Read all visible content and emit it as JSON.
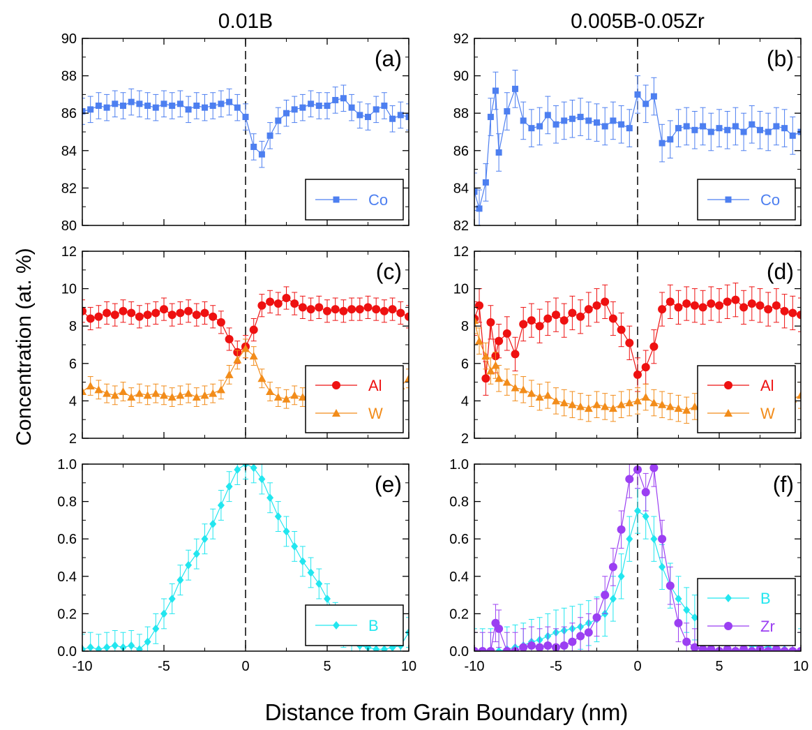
{
  "figure": {
    "column_titles": [
      "0.01B",
      "0.005B-0.05Zr"
    ],
    "ylabel": "Concentration  (at. %)",
    "xlabel": "Distance from Grain Boundary (nm)"
  },
  "colors": {
    "Co": "#4d7ff0",
    "Al": "#ee1111",
    "W": "#f28c1a",
    "B": "#22e6ef",
    "Zr": "#9b3ff2"
  },
  "chart_data": [
    {
      "type": "scatter",
      "panel": "(a)",
      "xlim": [
        -10,
        10
      ],
      "ylim": [
        80,
        90
      ],
      "yticks": [
        80,
        82,
        84,
        86,
        88,
        90
      ],
      "xticks": [
        -10,
        -5,
        0,
        5,
        10
      ],
      "legend_position": "bottom-right",
      "grid": false,
      "series": [
        {
          "name": "Co",
          "marker": "square",
          "err": 0.7,
          "x": [
            -10,
            -9.5,
            -9,
            -8.5,
            -8,
            -7.5,
            -7,
            -6.5,
            -6,
            -5.5,
            -5,
            -4.5,
            -4,
            -3.5,
            -3,
            -2.5,
            -2,
            -1.5,
            -1,
            -0.5,
            0,
            0.5,
            1,
            1.5,
            2,
            2.5,
            3,
            3.5,
            4,
            4.5,
            5,
            5.5,
            6,
            6.5,
            7,
            7.5,
            8,
            8.5,
            9,
            9.5,
            10
          ],
          "y": [
            86.1,
            86.2,
            86.4,
            86.3,
            86.5,
            86.4,
            86.6,
            86.5,
            86.4,
            86.3,
            86.5,
            86.4,
            86.5,
            86.2,
            86.4,
            86.3,
            86.4,
            86.5,
            86.6,
            86.3,
            85.8,
            84.2,
            83.8,
            84.8,
            85.6,
            86,
            86.2,
            86.3,
            86.5,
            86.4,
            86.4,
            86.7,
            86.8,
            86.3,
            85.9,
            85.8,
            86.2,
            86.4,
            85.7,
            85.9,
            85.8
          ]
        }
      ]
    },
    {
      "type": "scatter",
      "panel": "(b)",
      "xlim": [
        -10,
        10
      ],
      "ylim": [
        82,
        92
      ],
      "yticks": [
        82,
        84,
        86,
        88,
        90,
        92
      ],
      "xticks": [
        -10,
        -5,
        0,
        5,
        10
      ],
      "legend_position": "bottom-right",
      "grid": false,
      "series": [
        {
          "name": "Co",
          "marker": "square",
          "err": 1.0,
          "x": [
            -10,
            -9.7,
            -9.3,
            -9,
            -8.7,
            -8.5,
            -8,
            -7.5,
            -7,
            -6.5,
            -6,
            -5.5,
            -5,
            -4.5,
            -4,
            -3.5,
            -3,
            -2.5,
            -2,
            -1.5,
            -1,
            -0.5,
            0,
            0.5,
            1,
            1.5,
            2,
            2.5,
            3,
            3.5,
            4,
            4.5,
            5,
            5.5,
            6,
            6.5,
            7,
            7.5,
            8,
            8.5,
            9,
            9.5,
            10
          ],
          "y": [
            83.8,
            82.9,
            84.3,
            87.8,
            89.2,
            85.9,
            88.1,
            89.3,
            87.6,
            87.2,
            87.3,
            87.9,
            87.4,
            87.6,
            87.7,
            87.8,
            87.6,
            87.5,
            87.3,
            87.6,
            87.4,
            87.2,
            89,
            88.5,
            88.9,
            86.4,
            86.6,
            87.2,
            87.3,
            87.1,
            87.3,
            87,
            87.2,
            87.1,
            87.3,
            87,
            87.4,
            87.1,
            87,
            87.3,
            87.2,
            86.8,
            87
          ]
        }
      ]
    },
    {
      "type": "scatter",
      "panel": "(c)",
      "xlim": [
        -10,
        10
      ],
      "ylim": [
        2,
        12
      ],
      "yticks": [
        2,
        4,
        6,
        8,
        10,
        12
      ],
      "xticks": [
        -10,
        -5,
        0,
        5,
        10
      ],
      "legend_position": "bottom-right",
      "grid": false,
      "series": [
        {
          "name": "Al",
          "marker": "circle",
          "err": 0.6,
          "x": [
            -10,
            -9.5,
            -9,
            -8.5,
            -8,
            -7.5,
            -7,
            -6.5,
            -6,
            -5.5,
            -5,
            -4.5,
            -4,
            -3.5,
            -3,
            -2.5,
            -2,
            -1.5,
            -1,
            -0.5,
            0,
            0.5,
            1,
            1.5,
            2,
            2.5,
            3,
            3.5,
            4,
            4.5,
            5,
            5.5,
            6,
            6.5,
            7,
            7.5,
            8,
            8.5,
            9,
            9.5,
            10
          ],
          "y": [
            8.8,
            8.4,
            8.5,
            8.7,
            8.6,
            8.8,
            8.7,
            8.5,
            8.6,
            8.7,
            8.9,
            8.6,
            8.7,
            8.8,
            8.6,
            8.7,
            8.5,
            8.2,
            7.3,
            6.6,
            6.9,
            7.8,
            9.1,
            9.3,
            9.2,
            9.5,
            9.2,
            9.0,
            8.9,
            9.0,
            8.8,
            8.9,
            8.8,
            8.9,
            8.9,
            9.0,
            8.9,
            8.8,
            8.9,
            8.7,
            8.5
          ]
        },
        {
          "name": "W",
          "marker": "triangle",
          "err": 0.5,
          "x": [
            -10,
            -9.5,
            -9,
            -8.5,
            -8,
            -7.5,
            -7,
            -6.5,
            -6,
            -5.5,
            -5,
            -4.5,
            -4,
            -3.5,
            -3,
            -2.5,
            -2,
            -1.5,
            -1,
            -0.5,
            0,
            0.5,
            1,
            1.5,
            2,
            2.5,
            3,
            3.5,
            4,
            4.5,
            5,
            5.5,
            6,
            6.5,
            7,
            7.5,
            8,
            8.5,
            9,
            9.5,
            10
          ],
          "y": [
            4.5,
            4.8,
            4.6,
            4.4,
            4.3,
            4.5,
            4.2,
            4.4,
            4.3,
            4.4,
            4.3,
            4.2,
            4.3,
            4.4,
            4.2,
            4.3,
            4.4,
            4.6,
            5.4,
            6.2,
            6.8,
            6.4,
            5.2,
            4.5,
            4.2,
            4.1,
            4.3,
            4.2,
            4.3,
            4.4,
            4.2,
            4.3,
            4.4,
            4.3,
            4.5,
            4.3,
            4.4,
            4.6,
            4.5,
            4.8,
            5.2
          ]
        }
      ]
    },
    {
      "type": "scatter",
      "panel": "(d)",
      "xlim": [
        -10,
        10
      ],
      "ylim": [
        2,
        12
      ],
      "yticks": [
        2,
        4,
        6,
        8,
        10,
        12
      ],
      "xticks": [
        -10,
        -5,
        0,
        5,
        10
      ],
      "legend_position": "bottom-right",
      "grid": false,
      "series": [
        {
          "name": "Al",
          "marker": "circle",
          "err": 0.9,
          "x": [
            -10,
            -9.7,
            -9.3,
            -9,
            -8.7,
            -8.5,
            -8,
            -7.5,
            -7,
            -6.5,
            -6,
            -5.5,
            -5,
            -4.5,
            -4,
            -3.5,
            -3,
            -2.5,
            -2,
            -1.5,
            -1,
            -0.5,
            0,
            0.5,
            1,
            1.5,
            2,
            2.5,
            3,
            3.5,
            4,
            4.5,
            5,
            5.5,
            6,
            6.5,
            7,
            7.5,
            8,
            8.5,
            9,
            9.5,
            10
          ],
          "y": [
            8.4,
            9.1,
            5.2,
            8.2,
            6.4,
            7.2,
            7.6,
            6.5,
            8.1,
            8.3,
            8.0,
            8.4,
            8.6,
            8.3,
            8.7,
            8.5,
            8.9,
            9.1,
            9.3,
            8.4,
            7.8,
            7.1,
            5.4,
            5.8,
            6.9,
            8.9,
            9.3,
            9.0,
            9.2,
            9.1,
            9.0,
            9.2,
            9.1,
            9.3,
            9.4,
            9.0,
            9.2,
            9.1,
            8.9,
            9.1,
            8.8,
            8.7,
            8.6
          ]
        },
        {
          "name": "W",
          "marker": "triangle",
          "err": 0.7,
          "x": [
            -10,
            -9.7,
            -9.3,
            -9,
            -8.7,
            -8.5,
            -8,
            -7.5,
            -7,
            -6.5,
            -6,
            -5.5,
            -5,
            -4.5,
            -4,
            -3.5,
            -3,
            -2.5,
            -2,
            -1.5,
            -1,
            -0.5,
            0,
            0.5,
            1,
            1.5,
            2,
            2.5,
            3,
            3.5,
            4,
            4.5,
            5,
            5.5,
            6,
            6.5,
            7,
            7.5,
            8,
            8.5,
            9,
            9.5,
            10
          ],
          "y": [
            8.3,
            7.2,
            6.4,
            5.6,
            5.9,
            5.2,
            5.0,
            4.7,
            4.6,
            4.4,
            4.2,
            4.3,
            4.0,
            3.9,
            3.8,
            3.7,
            3.6,
            3.8,
            3.7,
            3.6,
            3.8,
            3.9,
            4.0,
            4.2,
            3.9,
            3.8,
            3.7,
            3.6,
            3.5,
            3.7,
            3.5,
            3.4,
            3.6,
            3.5,
            3.7,
            3.6,
            3.8,
            3.7,
            3.9,
            3.8,
            4.0,
            4.1,
            4.3
          ]
        }
      ]
    },
    {
      "type": "scatter",
      "panel": "(e)",
      "xlim": [
        -10,
        10
      ],
      "ylim": [
        0,
        1
      ],
      "yticks": [
        0.0,
        0.2,
        0.4,
        0.6,
        0.8,
        1.0
      ],
      "xticks": [
        -10,
        -5,
        0,
        5,
        10
      ],
      "legend_position": "bottom-right",
      "grid": false,
      "series": [
        {
          "name": "B",
          "marker": "diamond",
          "err": 0.08,
          "x": [
            -10,
            -9.5,
            -9,
            -8.5,
            -8,
            -7.5,
            -7,
            -6.5,
            -6,
            -5.5,
            -5,
            -4.5,
            -4,
            -3.5,
            -3,
            -2.5,
            -2,
            -1.5,
            -1,
            -0.5,
            0,
            0.5,
            1,
            1.5,
            2,
            2.5,
            3,
            3.5,
            4,
            4.5,
            5,
            5.5,
            6,
            6.5,
            7,
            7.5,
            8,
            8.5,
            9,
            9.5,
            10
          ],
          "y": [
            0.01,
            0.02,
            0.01,
            0.02,
            0.03,
            0.02,
            0.03,
            0.01,
            0.05,
            0.12,
            0.2,
            0.28,
            0.38,
            0.46,
            0.52,
            0.6,
            0.68,
            0.78,
            0.88,
            0.97,
            1.0,
            0.98,
            0.92,
            0.82,
            0.72,
            0.64,
            0.56,
            0.48,
            0.42,
            0.36,
            0.28,
            0.18,
            0.1,
            0.05,
            0.03,
            0.02,
            0.01,
            0.01,
            0.02,
            0.03,
            0.1
          ]
        }
      ]
    },
    {
      "type": "scatter",
      "panel": "(f)",
      "xlim": [
        -10,
        10
      ],
      "ylim": [
        0,
        1
      ],
      "yticks": [
        0.0,
        0.2,
        0.4,
        0.6,
        0.8,
        1.0
      ],
      "xticks": [
        -10,
        -5,
        0,
        5,
        10
      ],
      "legend_position": "bottom-right",
      "grid": false,
      "series": [
        {
          "name": "B",
          "marker": "diamond",
          "err": 0.12,
          "x": [
            -10,
            -9.5,
            -9,
            -8.5,
            -8,
            -7.5,
            -7,
            -6.5,
            -6,
            -5.5,
            -5,
            -4.5,
            -4,
            -3.5,
            -3,
            -2.5,
            -2,
            -1.5,
            -1,
            -0.5,
            0,
            0.5,
            1,
            1.5,
            2,
            2.5,
            3,
            3.5,
            4,
            4.5,
            5,
            5.5,
            6,
            6.5,
            7,
            7.5,
            8,
            8.5,
            9,
            9.5,
            10
          ],
          "y": [
            0.0,
            0.0,
            0.0,
            0.0,
            0.01,
            0.02,
            0.03,
            0.05,
            0.06,
            0.08,
            0.1,
            0.11,
            0.12,
            0.13,
            0.15,
            0.17,
            0.2,
            0.28,
            0.4,
            0.6,
            0.75,
            0.72,
            0.6,
            0.45,
            0.35,
            0.28,
            0.22,
            0.18,
            0.14,
            0.1,
            0.08,
            0.06,
            0.05,
            0.04,
            0.03,
            0.02,
            0.02,
            0.01,
            0.01,
            0.0,
            0.0
          ]
        },
        {
          "name": "Zr",
          "marker": "circle",
          "err": 0.1,
          "x": [
            -10,
            -9.5,
            -9,
            -8.7,
            -8.5,
            -8,
            -7.5,
            -7,
            -6.5,
            -6,
            -5.5,
            -5,
            -4.5,
            -4,
            -3.5,
            -3,
            -2.5,
            -2,
            -1.5,
            -1,
            -0.5,
            0,
            0.5,
            1,
            1.5,
            2,
            2.5,
            3,
            3.5,
            4,
            4.5,
            5,
            5.5,
            6,
            6.5,
            7,
            7.5,
            8,
            8.5,
            9,
            9.5,
            10
          ],
          "y": [
            0.0,
            0.0,
            0.0,
            0.15,
            0.12,
            0.0,
            0.0,
            0.02,
            0.03,
            0.02,
            0.03,
            0.02,
            0.03,
            0.05,
            0.08,
            0.1,
            0.18,
            0.3,
            0.45,
            0.65,
            0.92,
            0.97,
            0.85,
            0.98,
            0.6,
            0.35,
            0.15,
            0.05,
            0.02,
            0.01,
            0.01,
            0.0,
            0.01,
            0.0,
            0.01,
            0.0,
            0.01,
            0.0,
            0.01,
            0.0,
            0.0,
            0.0
          ]
        }
      ]
    }
  ]
}
